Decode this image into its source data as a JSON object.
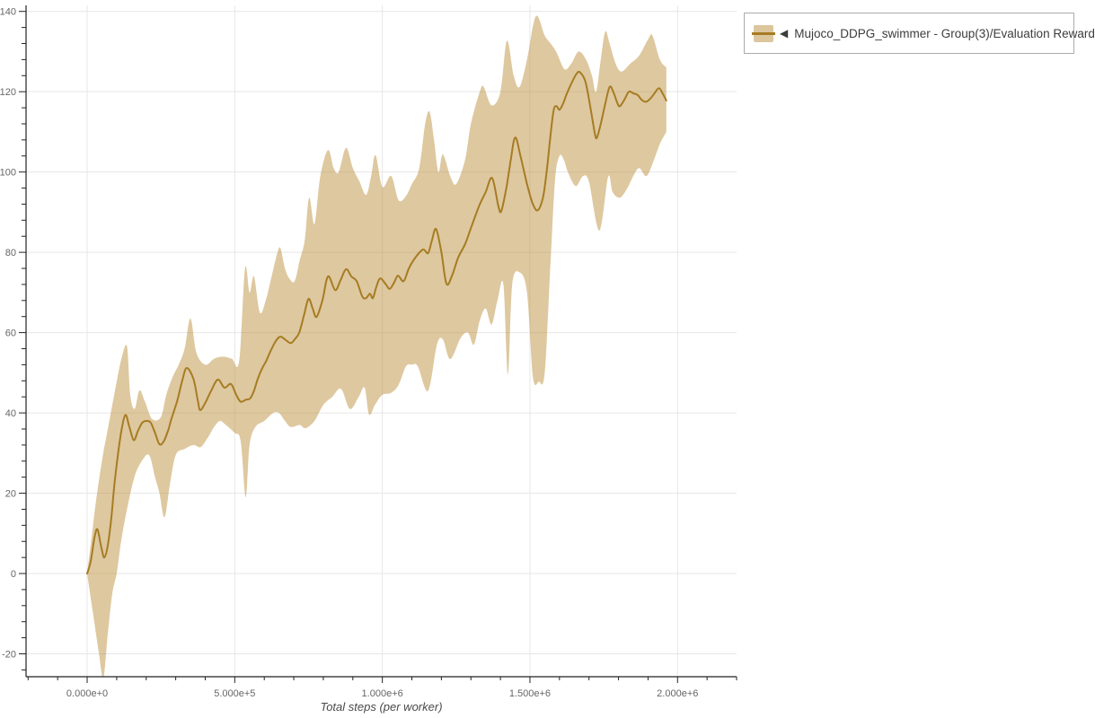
{
  "legend": {
    "collapse_icon": "◀",
    "series_label": "Mujoco_DDPG_swimmer - Group(3)/Evaluation Reward"
  },
  "axes": {
    "x_title": "Total steps (per worker)",
    "x_tick_labels": [
      "0.000e+0",
      "5.000e+5",
      "1.000e+6",
      "1.500e+6",
      "2.000e+6"
    ],
    "y_tick_labels": [
      "-20",
      "0",
      "20",
      "40",
      "60",
      "80",
      "100",
      "120",
      "140"
    ]
  },
  "colors": {
    "line": "#a67c23",
    "band_base": "#b98b37",
    "band_opacity": 0.48,
    "grid": "#e7e7e7",
    "spine": "#222222",
    "tick": "#222222",
    "tick_label": "#666666",
    "axis_title": "#4a4a4a",
    "legend_border": "#ababab",
    "legend_text": "#3c3c3c"
  },
  "chart_data": {
    "type": "line",
    "title": "",
    "xlabel": "Total steps (per worker)",
    "ylabel": "",
    "grid": true,
    "legend_position": "top-right",
    "x_unit": 1000000,
    "xlim": [
      -0.207,
      2.2
    ],
    "ylim": [
      -25.7,
      141.5
    ],
    "x_major_ticks": [
      0,
      0.5,
      1.0,
      1.5,
      2.0
    ],
    "x_minor_step": 0.1,
    "y_major_ticks": [
      -20,
      0,
      20,
      40,
      60,
      80,
      100,
      120,
      140
    ],
    "y_minor_step": 4,
    "series": [
      {
        "name": "Mujoco_DDPG_swimmer - Group(3)/Evaluation Reward",
        "x": [
          0,
          0.012,
          0.025,
          0.035,
          0.048,
          0.058,
          0.07,
          0.082,
          0.092,
          0.105,
          0.117,
          0.13,
          0.143,
          0.158,
          0.172,
          0.186,
          0.2,
          0.215,
          0.23,
          0.245,
          0.26,
          0.275,
          0.285,
          0.305,
          0.322,
          0.337,
          0.36,
          0.375,
          0.383,
          0.4,
          0.42,
          0.443,
          0.465,
          0.487,
          0.505,
          0.52,
          0.538,
          0.552,
          0.565,
          0.578,
          0.592,
          0.607,
          0.622,
          0.64,
          0.655,
          0.672,
          0.69,
          0.705,
          0.719,
          0.735,
          0.75,
          0.764,
          0.777,
          0.797,
          0.816,
          0.84,
          0.858,
          0.877,
          0.895,
          0.913,
          0.932,
          0.945,
          0.958,
          0.968,
          0.98,
          0.993,
          1.012,
          1.025,
          1.04,
          1.053,
          1.072,
          1.09,
          1.112,
          1.138,
          1.155,
          1.168,
          1.182,
          1.2,
          1.217,
          1.235,
          1.257,
          1.28,
          1.3,
          1.327,
          1.35,
          1.372,
          1.393,
          1.403,
          1.42,
          1.435,
          1.45,
          1.468,
          1.49,
          1.51,
          1.527,
          1.545,
          1.558,
          1.568,
          1.58,
          1.59,
          1.6,
          1.612,
          1.625,
          1.64,
          1.658,
          1.67,
          1.688,
          1.705,
          1.72,
          1.727,
          1.74,
          1.755,
          1.77,
          1.783,
          1.797,
          1.805,
          1.82,
          1.835,
          1.85,
          1.865,
          1.878,
          1.893,
          1.908,
          1.922,
          1.937,
          1.95,
          1.962
        ],
        "mean": [
          0,
          3,
          9,
          11,
          6.5,
          4,
          7,
          14,
          22,
          30,
          36,
          39.5,
          36.5,
          33.2,
          35.5,
          37.5,
          38,
          37.6,
          35,
          32.2,
          33,
          35.8,
          38.4,
          43,
          48,
          51.2,
          48.5,
          43,
          40.7,
          42.5,
          45.5,
          48.3,
          46.3,
          47.2,
          44.5,
          42.8,
          43.3,
          43.6,
          45.5,
          48.5,
          51,
          53,
          55.5,
          58,
          59,
          58.2,
          57.4,
          58.5,
          60.1,
          64.5,
          68.4,
          66,
          63.9,
          68,
          74,
          70.6,
          73,
          75.8,
          74,
          72.8,
          69,
          68.6,
          69.7,
          68.6,
          71.5,
          73.5,
          72,
          70.9,
          72.5,
          74.2,
          72.8,
          76,
          78.7,
          80.7,
          79.8,
          83,
          85.8,
          80,
          72.2,
          74,
          78.7,
          82,
          86,
          91.4,
          95,
          98.5,
          91.5,
          90.3,
          96,
          103,
          108.6,
          104,
          97,
          92,
          90.5,
          94,
          101,
          108,
          115.3,
          116.4,
          115.5,
          117,
          119.5,
          122,
          124.5,
          124.8,
          122.5,
          116,
          109.5,
          108.6,
          112,
          117,
          121.2,
          119.8,
          117,
          116.4,
          118,
          120,
          119.6,
          119.2,
          118,
          117.5,
          118.3,
          119.6,
          120.9,
          119.5,
          117.8
        ],
        "band_upper": {
          "x": [
            0,
            0.02,
            0.03,
            0.05,
            0.07,
            0.1,
            0.118,
            0.135,
            0.146,
            0.161,
            0.177,
            0.195,
            0.22,
            0.25,
            0.268,
            0.29,
            0.31,
            0.33,
            0.35,
            0.37,
            0.4,
            0.43,
            0.46,
            0.49,
            0.515,
            0.535,
            0.55,
            0.565,
            0.585,
            0.605,
            0.625,
            0.645,
            0.655,
            0.67,
            0.685,
            0.703,
            0.72,
            0.737,
            0.752,
            0.77,
            0.79,
            0.816,
            0.835,
            0.852,
            0.877,
            0.9,
            0.922,
            0.945,
            0.962,
            0.977,
            1.0,
            1.03,
            1.055,
            1.08,
            1.1,
            1.125,
            1.145,
            1.16,
            1.175,
            1.19,
            1.205,
            1.23,
            1.25,
            1.28,
            1.3,
            1.33,
            1.343,
            1.37,
            1.4,
            1.422,
            1.445,
            1.465,
            1.49,
            1.52,
            1.55,
            1.57,
            1.59,
            1.617,
            1.64,
            1.665,
            1.69,
            1.71,
            1.724,
            1.74,
            1.755,
            1.77,
            1.79,
            1.81,
            1.84,
            1.87,
            1.9,
            1.915,
            1.94,
            1.962
          ],
          "y": [
            0,
            12,
            18,
            28,
            36,
            47.8,
            54,
            56.5,
            44.5,
            41,
            45.6,
            43,
            38.5,
            39,
            44.5,
            49,
            52,
            56,
            63.5,
            55,
            52,
            53.5,
            54,
            53.5,
            53,
            76,
            70,
            74,
            65,
            68,
            74,
            80,
            81,
            76,
            73.5,
            72.8,
            78,
            83,
            93.6,
            87,
            99,
            105.5,
            101,
            100,
            106,
            101,
            97.7,
            94.3,
            99,
            104.2,
            96.3,
            99,
            93,
            94,
            97,
            101,
            112,
            115,
            108,
            100,
            104.4,
            99,
            97,
            103,
            112,
            120,
            121.2,
            116.6,
            120,
            132.7,
            124,
            121.2,
            128,
            138.8,
            134,
            132,
            129.8,
            125.6,
            127,
            130,
            128,
            124,
            120,
            128,
            135,
            132,
            127,
            125,
            127,
            129,
            133,
            134,
            128,
            126
          ]
        },
        "band_lower": {
          "x": [
            0,
            0.02,
            0.04,
            0.055,
            0.07,
            0.085,
            0.1,
            0.115,
            0.135,
            0.16,
            0.185,
            0.21,
            0.23,
            0.245,
            0.262,
            0.28,
            0.3,
            0.33,
            0.36,
            0.385,
            0.41,
            0.43,
            0.45,
            0.47,
            0.5,
            0.52,
            0.537,
            0.55,
            0.57,
            0.6,
            0.63,
            0.65,
            0.67,
            0.69,
            0.72,
            0.74,
            0.77,
            0.8,
            0.83,
            0.86,
            0.89,
            0.92,
            0.94,
            0.955,
            0.975,
            1.0,
            1.03,
            1.055,
            1.08,
            1.1,
            1.12,
            1.155,
            1.185,
            1.205,
            1.23,
            1.265,
            1.29,
            1.31,
            1.33,
            1.35,
            1.37,
            1.39,
            1.41,
            1.425,
            1.44,
            1.465,
            1.49,
            1.51,
            1.53,
            1.55,
            1.57,
            1.585,
            1.6,
            1.615,
            1.63,
            1.655,
            1.68,
            1.7,
            1.735,
            1.765,
            1.78,
            1.805,
            1.83,
            1.85,
            1.87,
            1.895,
            1.92,
            1.94,
            1.962
          ],
          "y": [
            0,
            -10,
            -20,
            -26,
            -15,
            -5,
            0,
            8,
            16,
            24,
            28,
            29.5,
            24,
            20,
            14,
            22,
            29.5,
            31,
            32,
            31.5,
            34,
            36.5,
            38,
            37,
            35,
            33,
            19,
            32,
            36.5,
            38,
            40,
            40,
            38,
            36.5,
            37,
            36.2,
            38,
            42,
            44,
            46,
            41,
            44,
            46.3,
            39.6,
            42,
            44.5,
            45,
            47,
            51.6,
            52,
            51.6,
            45.5,
            57,
            58.3,
            53.4,
            58.6,
            60,
            57,
            63,
            66,
            62,
            68,
            72,
            49.6,
            72,
            75,
            70,
            49,
            47.8,
            50,
            78,
            98,
            104,
            103,
            99.7,
            96.5,
            99,
            97.5,
            85.4,
            98.8,
            95,
            93.6,
            96,
            99,
            101,
            99,
            103,
            107,
            110
          ]
        }
      }
    ]
  }
}
